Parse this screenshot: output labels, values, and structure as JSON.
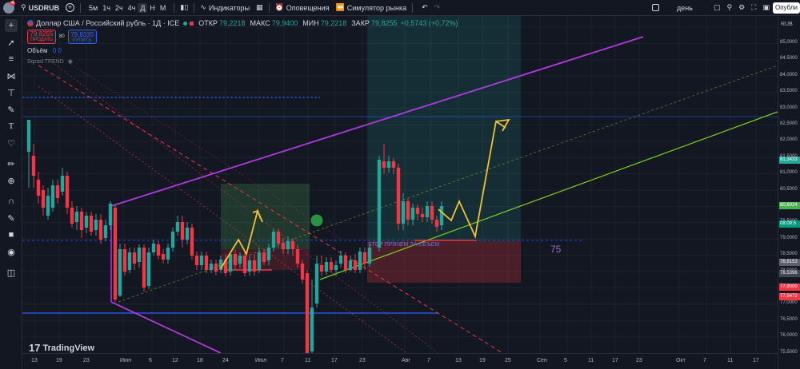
{
  "topbar": {
    "symbol": "USDRUB",
    "timeframes": [
      "5м",
      "1ч",
      "2ч",
      "4ч",
      "Д",
      "Н",
      "М"
    ],
    "active_timeframe": "Д",
    "indicators_label": "Индикаторы",
    "alerts_label": "Оповещения",
    "simulator_label": "Симулятор рынка",
    "period_label": "день",
    "publish_label": "Опубли",
    "notification_count": "4"
  },
  "legend": {
    "title": "Доллар США / Российский рубль · 1Д · ICE",
    "open_label": "ОТКР",
    "open_value": "79,2218",
    "high_label": "МАКС",
    "high_value": "79,9400",
    "low_label": "МИН",
    "low_value": "79,2218",
    "close_label": "ЗАКР",
    "close_value": "79,8255",
    "change_value": "+0,5743 (+0,72%)",
    "sell_price": "79,8255",
    "sell_label": "ПРОДАТЬ",
    "spread": "80",
    "buy_price": "79,8335",
    "buy_label": "КУПИТЬ",
    "volume_label": "Объём",
    "volume_values": "0  0",
    "indicator_label": "Sqzad TREND"
  },
  "annotations": {
    "stop_text": "STOP ПРЯЧЕМ ЗА ОБЪЕМ",
    "number_label": "75"
  },
  "price_axis": {
    "currency": "RUB",
    "ticks": [
      "85,0000",
      "84,5000",
      "84,0000",
      "83,5000",
      "83,0000",
      "82,5000",
      "82,0000",
      "81,5000",
      "81,0000",
      "80,5000",
      "80,0000",
      "79,5000",
      "79,0000",
      "78,5000",
      "78,0000",
      "77,5000",
      "77,0000",
      "76,5000",
      "76,0000",
      "75,5000"
    ],
    "tags": [
      {
        "text": "81,3433",
        "color": "#26a69a"
      },
      {
        "text": "80,6024",
        "color": "#4caf50"
      },
      {
        "text": "08:09:5",
        "color": "#089981"
      },
      {
        "text": "78,8153",
        "color": "#5d606b"
      },
      {
        "text": "78,5396",
        "color": "#434651"
      },
      {
        "text": "77,9000",
        "color": "#f23645"
      },
      {
        "text": "77,5472",
        "color": "#f23645"
      }
    ]
  },
  "time_axis": {
    "labels": [
      "13",
      "19",
      "23",
      "Июн",
      "6",
      "12",
      "18",
      "24",
      "Июл",
      "7",
      "11",
      "17",
      "23",
      "Авг",
      "7",
      "13",
      "19",
      "25",
      "Сен",
      "5",
      "11",
      "17",
      "23",
      "Окт",
      "7",
      "11",
      "17"
    ]
  },
  "branding": {
    "logo_text": "TradingView"
  },
  "colors": {
    "background": "#131722",
    "up": "#26a69a",
    "down": "#f23645",
    "channel": "#b03ae0",
    "arrow": "#f2c12e",
    "trend_green": "#7ed321"
  }
}
